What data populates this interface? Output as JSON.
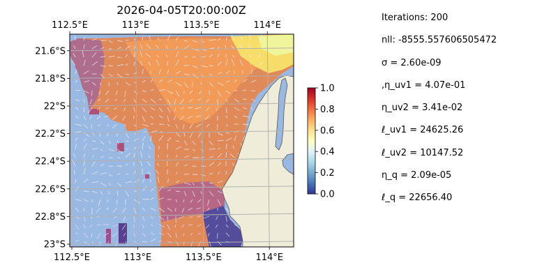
{
  "title": "2026-04-05T20:00:00Z",
  "map": {
    "lon_ticks": [
      "112.5°E",
      "113°E",
      "113.5°E",
      "114°E"
    ],
    "lon_values": [
      112.5,
      113.0,
      113.5,
      114.0
    ],
    "lat_ticks": [
      "21.6°S",
      "21.8°S",
      "22°S",
      "22.2°S",
      "22.4°S",
      "22.6°S",
      "22.8°S",
      "23°S"
    ],
    "lat_values": [
      -21.6,
      -21.8,
      -22.0,
      -22.2,
      -22.4,
      -22.6,
      -22.8,
      -23.0
    ],
    "lon_range": [
      112.5,
      114.2
    ],
    "lat_range": [
      -23.02,
      -21.48
    ],
    "gridlines": true,
    "ocean_color": "#9ab9e2",
    "land_color": "#efedda",
    "colormap": "RdYlBu_r"
  },
  "colorbar": {
    "ticks": [
      "0.0",
      "0.2",
      "0.4",
      "0.6",
      "0.8",
      "1.0"
    ],
    "tick_values": [
      0.0,
      0.2,
      0.4,
      0.6,
      0.8,
      1.0
    ],
    "range": [
      0.0,
      1.0
    ]
  },
  "stats": [
    "Iterations: 200",
    "nll: -8555.557606505472",
    "σ = 2.60e-09",
    ",η_uv1 = 4.07e-01",
    "η_uv2 = 3.41e-02",
    "ℓ_uv1 = 24625.26",
    "ℓ_uv2 = 10147.52",
    "η_q = 2.09e-05",
    "ℓ_q = 22656.40"
  ]
}
